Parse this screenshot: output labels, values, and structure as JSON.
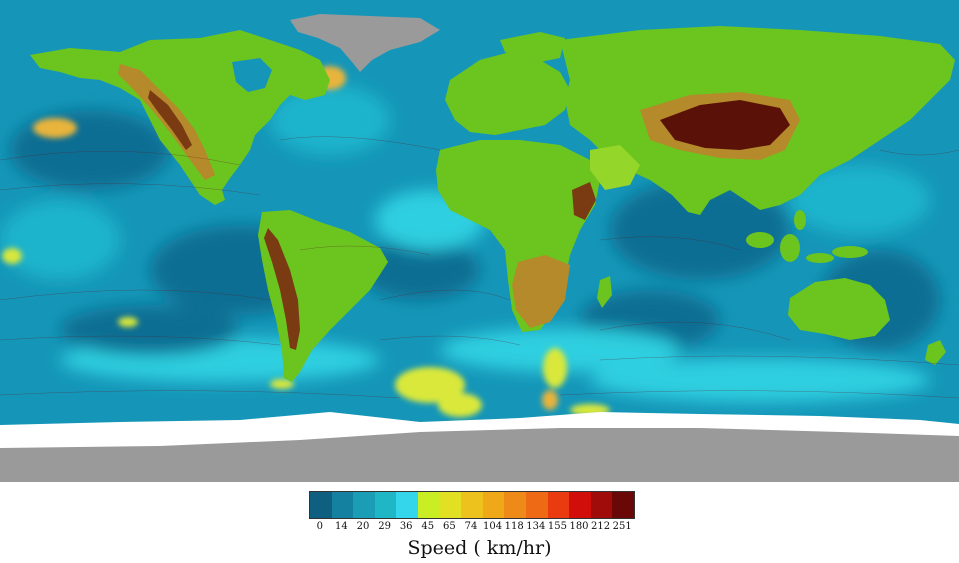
{
  "map": {
    "projection": "equirectangular",
    "variable": "wind speed",
    "colors": {
      "ocean_deep": "#0a6e93",
      "ocean_mid": "#1596b8",
      "ocean_light": "#1bb4cc",
      "ocean_cyan": "#2dcfe0",
      "land_green": "#6cc41e",
      "land_light": "#94d62a",
      "highland": "#b58a2a",
      "mountain": "#7a3a12",
      "peak": "#5a1208",
      "ice_white": "#ffffff",
      "ice_gray": "#9a9a9a",
      "streamline": "#5a1a2a",
      "wind_yellow": "#d9e83a",
      "wind_orange": "#e8b43a"
    }
  },
  "legend": {
    "title": "Speed  ( km/hr)",
    "labels": [
      "0",
      "14",
      "20",
      "29",
      "36",
      "45",
      "65",
      "74",
      "104",
      "118",
      "134",
      "155",
      "180",
      "212",
      "251"
    ],
    "colors": [
      "#0e5f80",
      "#13819f",
      "#1a9db5",
      "#1fb6c6",
      "#33d6ea",
      "#c9ee24",
      "#e2e022",
      "#eec21c",
      "#eea818",
      "#ee8a18",
      "#ee6a14",
      "#ea3a10",
      "#d20e0a",
      "#a00c0a",
      "#6a0808"
    ]
  }
}
